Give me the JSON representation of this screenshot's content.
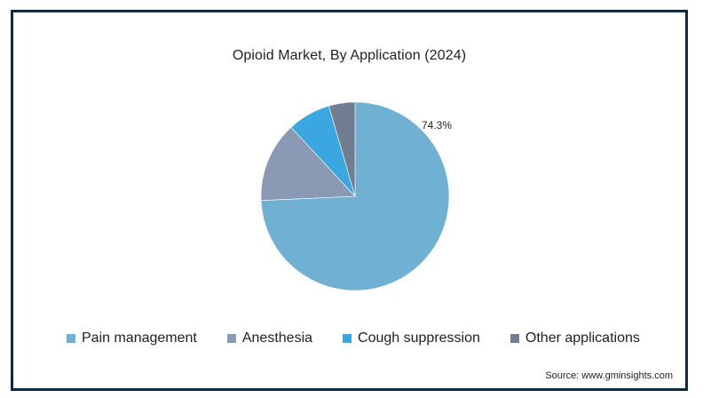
{
  "chart_data": {
    "type": "pie",
    "title": "Opioid Market, By Application (2024)",
    "categories": [
      "Pain management",
      "Anesthesia",
      "Cough suppression",
      "Other applications"
    ],
    "values": [
      74.3,
      13.8,
      7.4,
      4.5
    ],
    "colors": [
      "#6fb0d3",
      "#8a9ab4",
      "#3aa7e0",
      "#717e91"
    ],
    "data_labels": [
      {
        "category": "Pain management",
        "text": "74.3%"
      }
    ],
    "legend_position": "bottom"
  },
  "legend": [
    {
      "label": "Pain management",
      "color": "#6fb0d3"
    },
    {
      "label": "Anesthesia",
      "color": "#8a9ab4"
    },
    {
      "label": "Cough suppression",
      "color": "#3aa7e0"
    },
    {
      "label": "Other applications",
      "color": "#717e91"
    }
  ],
  "source": "Source: www.gminsights.com",
  "frame_color": "#0c2a4a"
}
